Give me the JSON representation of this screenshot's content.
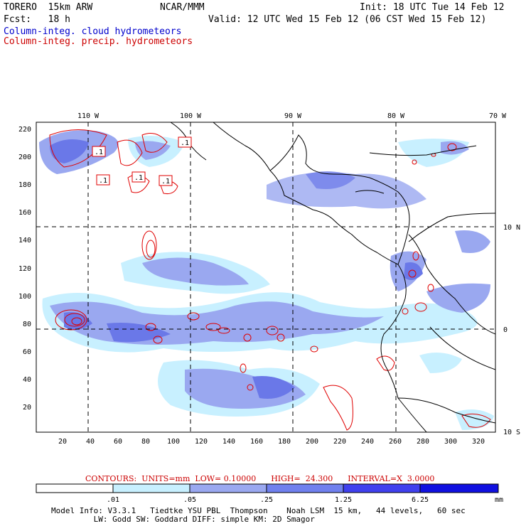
{
  "header": {
    "model": "TORERO  15km ARW",
    "center": "NCAR/MMM",
    "init": "Init: 18 UTC Tue 14 Feb 12",
    "fcst": "Fcst:   18 h",
    "valid": "Valid: 12 UTC Wed 15 Feb 12 (06 CST Wed 15 Feb 12)",
    "field1": "Column-integ. cloud hydrometeors",
    "field2": "Column-integ. precip. hydrometeors"
  },
  "map": {
    "top_lon_labels": [
      "110 W",
      "100 W",
      "90 W",
      "80 W",
      "70 W"
    ],
    "right_lat_labels": [
      "10 N",
      "0",
      "10 S"
    ],
    "y_ticks": [
      "220",
      "200",
      "180",
      "160",
      "140",
      "120",
      "100",
      "80",
      "60",
      "40",
      "20"
    ],
    "x_ticks": [
      "20",
      "40",
      "60",
      "80",
      "100",
      "120",
      "140",
      "160",
      "180",
      "200",
      "220",
      "240",
      "260",
      "280",
      "300",
      "320"
    ],
    "box_labels": [
      ".1",
      ".1",
      ".1",
      ".1",
      ".1"
    ],
    "colors": {
      "cloud_light": "#c8f0ff",
      "cloud_mid": "#9aa8f0",
      "cloud_dark": "#6a78e8",
      "precip_contour": "#e00000",
      "coastline": "#000000"
    }
  },
  "contours": {
    "text": "CONTOURS:  UNITS=mm  LOW= 0.10000      HIGH=  24.300      INTERVAL=X  3.0000"
  },
  "colorbar": {
    "labels": [
      ".01",
      ".05",
      ".25",
      "1.25",
      "6.25"
    ],
    "unit": "mm",
    "colors": [
      "#ffffff",
      "#c8f0ff",
      "#9aa8f0",
      "#7080ee",
      "#4040ee",
      "#1010e0"
    ]
  },
  "model_info": {
    "line1": "Model Info: V3.3.1   Tiedtke YSU PBL  Thompson    Noah LSM  15 km,   44 levels,   60 sec",
    "line2": "         LW: Godd SW: Goddard DIFF: simple KM: 2D Smagor"
  }
}
